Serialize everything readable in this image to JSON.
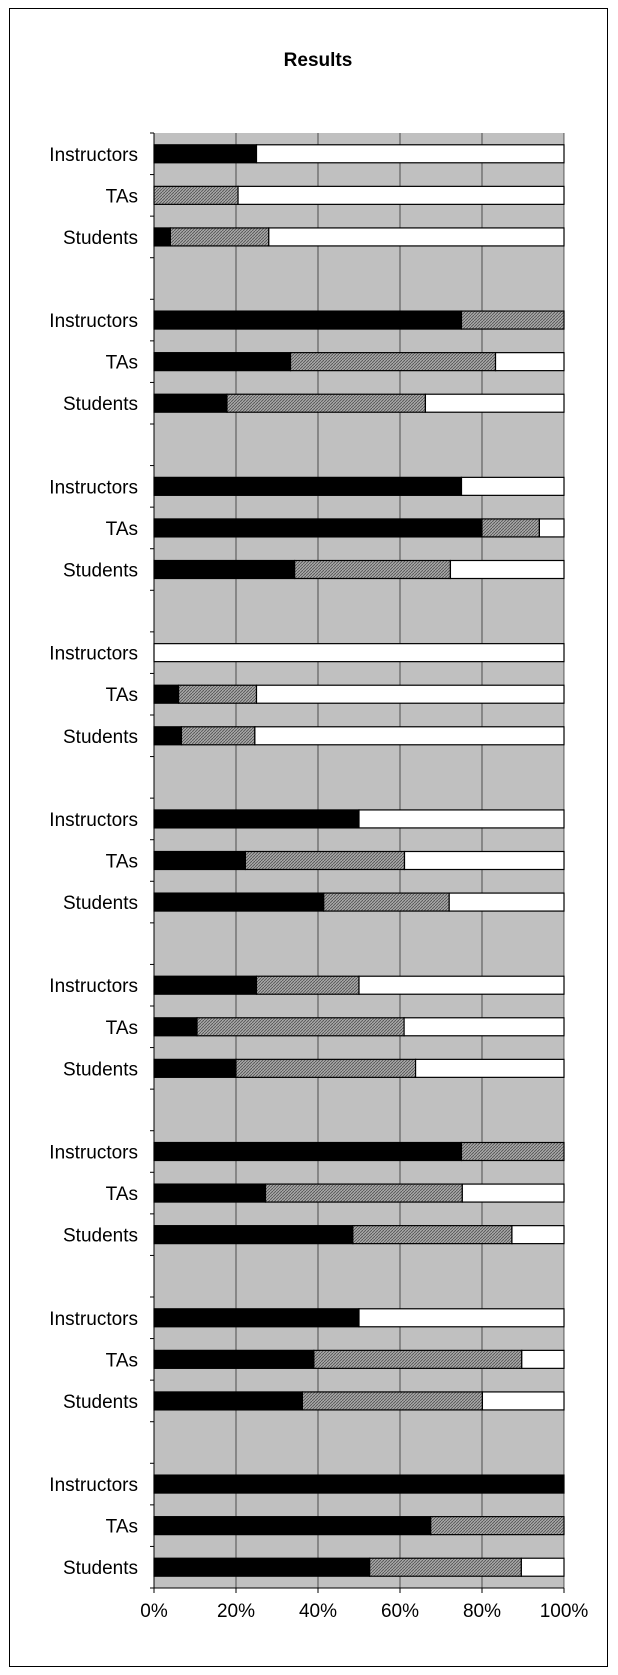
{
  "chart_data": {
    "type": "bar",
    "orientation": "horizontal",
    "stacked": "percent",
    "title": "Results",
    "xlabel": "",
    "ylabel": "",
    "xlim": [
      0,
      100
    ],
    "x_ticks": [
      "0%",
      "20%",
      "40%",
      "60%",
      "80%",
      "100%"
    ],
    "grid": true,
    "legend": "none",
    "colors": {
      "plot_bg": "#c0c0c0",
      "grid": "#000000",
      "seg1": "#000000",
      "seg2": "#8c8c8c",
      "seg3": "#ffffff"
    },
    "groups": [
      {
        "bars": [
          {
            "label": "Instructors",
            "values": [
              25,
              0,
              75
            ]
          },
          {
            "label": "TAs",
            "values": [
              0,
              20.5,
              79.5
            ]
          },
          {
            "label": "Students",
            "values": [
              4,
              24,
              72
            ]
          }
        ]
      },
      {
        "bars": [
          {
            "label": "Instructors",
            "values": [
              75,
              25,
              0
            ]
          },
          {
            "label": "TAs",
            "values": [
              33.3,
              50,
              16.7
            ]
          },
          {
            "label": "Students",
            "values": [
              17.8,
              48.4,
              33.8
            ]
          }
        ]
      },
      {
        "bars": [
          {
            "label": "Instructors",
            "values": [
              75,
              0,
              25
            ]
          },
          {
            "label": "TAs",
            "values": [
              80,
              14,
              6
            ]
          },
          {
            "label": "Students",
            "values": [
              34.3,
              38,
              27.7
            ]
          }
        ]
      },
      {
        "bars": [
          {
            "label": "Instructors",
            "values": [
              0,
              0,
              100
            ]
          },
          {
            "label": "TAs",
            "values": [
              6,
              19,
              75
            ]
          },
          {
            "label": "Students",
            "values": [
              6.7,
              17.9,
              75.4
            ]
          }
        ]
      },
      {
        "bars": [
          {
            "label": "Instructors",
            "values": [
              50,
              0,
              50
            ]
          },
          {
            "label": "TAs",
            "values": [
              22.3,
              38.8,
              38.9
            ]
          },
          {
            "label": "Students",
            "values": [
              41.4,
              30.6,
              28
            ]
          }
        ]
      },
      {
        "bars": [
          {
            "label": "Instructors",
            "values": [
              25,
              25,
              50
            ]
          },
          {
            "label": "TAs",
            "values": [
              10.5,
              50.5,
              39
            ]
          },
          {
            "label": "Students",
            "values": [
              20,
              43.8,
              36.2
            ]
          }
        ]
      },
      {
        "bars": [
          {
            "label": "Instructors",
            "values": [
              75,
              25,
              0
            ]
          },
          {
            "label": "TAs",
            "values": [
              27.2,
              48,
              24.8
            ]
          },
          {
            "label": "Students",
            "values": [
              48.5,
              38.8,
              12.7
            ]
          }
        ]
      },
      {
        "bars": [
          {
            "label": "Instructors",
            "values": [
              50,
              0,
              50
            ]
          },
          {
            "label": "TAs",
            "values": [
              39,
              50.7,
              10.3
            ]
          },
          {
            "label": "Students",
            "values": [
              36.2,
              43.9,
              19.9
            ]
          }
        ]
      },
      {
        "bars": [
          {
            "label": "Instructors",
            "values": [
              100,
              0,
              0
            ]
          },
          {
            "label": "TAs",
            "values": [
              67.5,
              32.5,
              0
            ]
          },
          {
            "label": "Students",
            "values": [
              52.6,
              37,
              10.4
            ]
          }
        ]
      }
    ]
  }
}
